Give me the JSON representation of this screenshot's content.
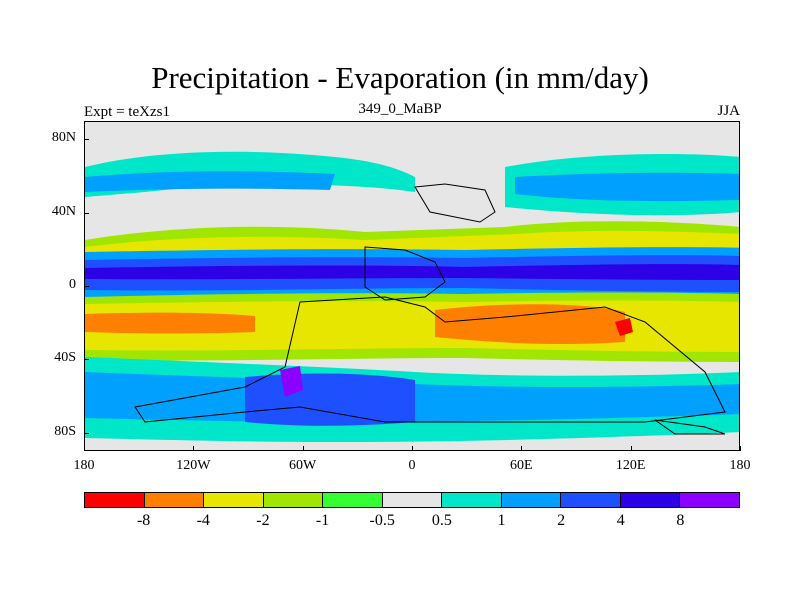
{
  "title": "Precipitation - Evaporation (in mm/day)",
  "experiment_label": "Expt = teXzs1",
  "period_label": "349_0_MaBP",
  "season_label": "JJA",
  "lat_ticks": [
    {
      "label": "80N",
      "lat": 80
    },
    {
      "label": "40N",
      "lat": 40
    },
    {
      "label": "0",
      "lat": 0
    },
    {
      "label": "40S",
      "lat": -40
    },
    {
      "label": "80S",
      "lat": -80
    }
  ],
  "lon_ticks": [
    {
      "label": "180",
      "lon": -180
    },
    {
      "label": "120W",
      "lon": -120
    },
    {
      "label": "60W",
      "lon": -60
    },
    {
      "label": "0",
      "lon": 0
    },
    {
      "label": "60E",
      "lon": 60
    },
    {
      "label": "120E",
      "lon": 120
    },
    {
      "label": "180",
      "lon": 180
    }
  ],
  "colorbar": {
    "colors": [
      "#ff0000",
      "#ff8000",
      "#e6e600",
      "#a0e600",
      "#33ff33",
      "#e6e6e6",
      "#00e6c8",
      "#00a0ff",
      "#1e50ff",
      "#2d00e6",
      "#8c00ff"
    ],
    "labels": [
      "-8",
      "-4",
      "-2",
      "-1",
      "-0.5",
      "0.5",
      "1",
      "2",
      "4",
      "8"
    ]
  },
  "colors": {
    "ocean_background": "#e6e6e6",
    "coastline": "#000000"
  }
}
